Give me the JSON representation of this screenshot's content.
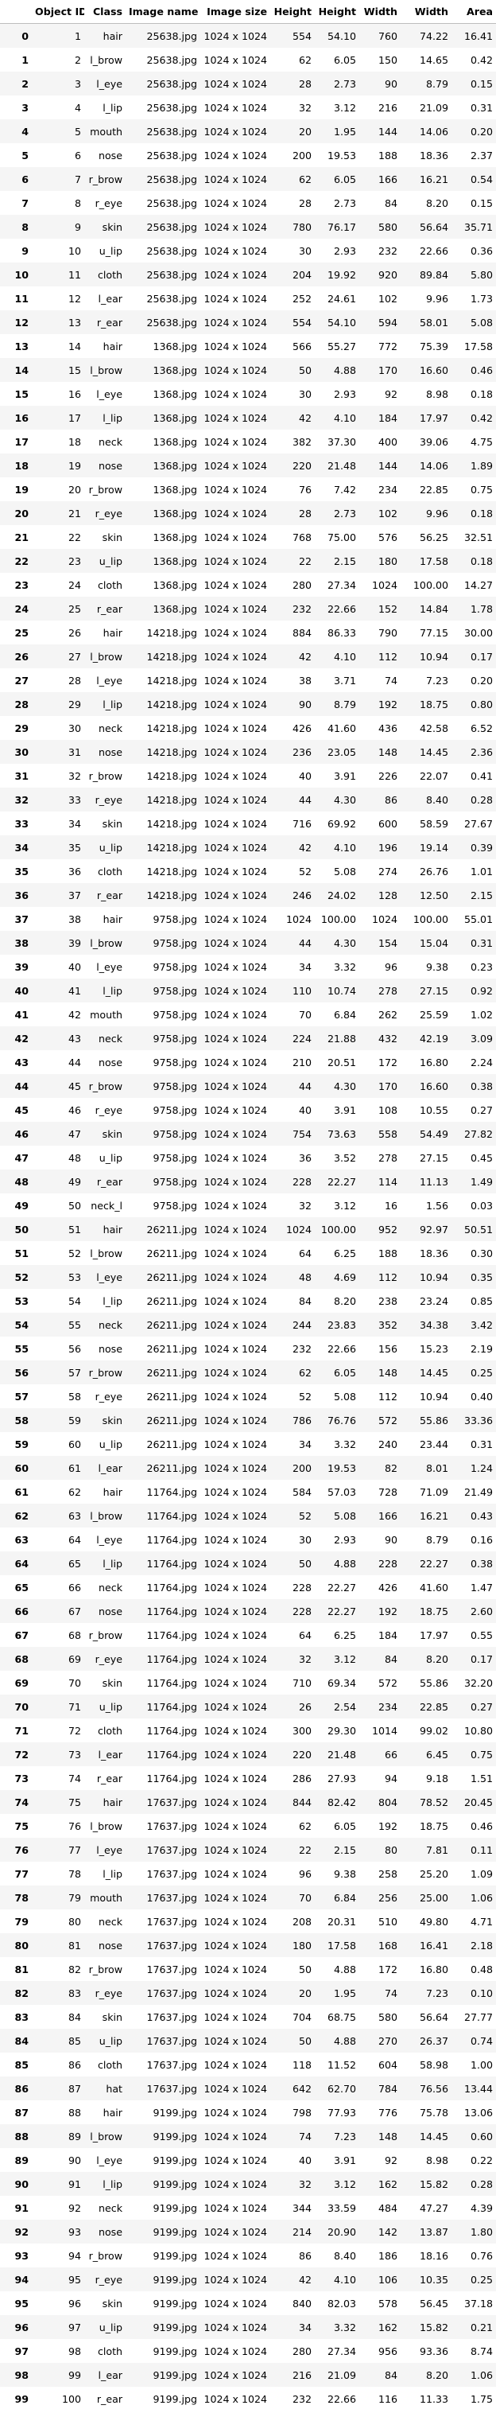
{
  "table": {
    "columns": [
      "",
      "Object ID",
      "Class",
      "Image name",
      "Image size",
      "Height",
      "Height",
      "Width",
      "Width",
      "Area"
    ],
    "rows": [
      [
        "0",
        "1",
        "hair",
        "25638.jpg",
        "1024 x 1024",
        "554",
        "54.10",
        "760",
        "74.22",
        "16.41"
      ],
      [
        "1",
        "2",
        "l_brow",
        "25638.jpg",
        "1024 x 1024",
        "62",
        "6.05",
        "150",
        "14.65",
        "0.42"
      ],
      [
        "2",
        "3",
        "l_eye",
        "25638.jpg",
        "1024 x 1024",
        "28",
        "2.73",
        "90",
        "8.79",
        "0.15"
      ],
      [
        "3",
        "4",
        "l_lip",
        "25638.jpg",
        "1024 x 1024",
        "32",
        "3.12",
        "216",
        "21.09",
        "0.31"
      ],
      [
        "4",
        "5",
        "mouth",
        "25638.jpg",
        "1024 x 1024",
        "20",
        "1.95",
        "144",
        "14.06",
        "0.20"
      ],
      [
        "5",
        "6",
        "nose",
        "25638.jpg",
        "1024 x 1024",
        "200",
        "19.53",
        "188",
        "18.36",
        "2.37"
      ],
      [
        "6",
        "7",
        "r_brow",
        "25638.jpg",
        "1024 x 1024",
        "62",
        "6.05",
        "166",
        "16.21",
        "0.54"
      ],
      [
        "7",
        "8",
        "r_eye",
        "25638.jpg",
        "1024 x 1024",
        "28",
        "2.73",
        "84",
        "8.20",
        "0.15"
      ],
      [
        "8",
        "9",
        "skin",
        "25638.jpg",
        "1024 x 1024",
        "780",
        "76.17",
        "580",
        "56.64",
        "35.71"
      ],
      [
        "9",
        "10",
        "u_lip",
        "25638.jpg",
        "1024 x 1024",
        "30",
        "2.93",
        "232",
        "22.66",
        "0.36"
      ],
      [
        "10",
        "11",
        "cloth",
        "25638.jpg",
        "1024 x 1024",
        "204",
        "19.92",
        "920",
        "89.84",
        "5.80"
      ],
      [
        "11",
        "12",
        "l_ear",
        "25638.jpg",
        "1024 x 1024",
        "252",
        "24.61",
        "102",
        "9.96",
        "1.73"
      ],
      [
        "12",
        "13",
        "r_ear",
        "25638.jpg",
        "1024 x 1024",
        "554",
        "54.10",
        "594",
        "58.01",
        "5.08"
      ],
      [
        "13",
        "14",
        "hair",
        "1368.jpg",
        "1024 x 1024",
        "566",
        "55.27",
        "772",
        "75.39",
        "17.58"
      ],
      [
        "14",
        "15",
        "l_brow",
        "1368.jpg",
        "1024 x 1024",
        "50",
        "4.88",
        "170",
        "16.60",
        "0.46"
      ],
      [
        "15",
        "16",
        "l_eye",
        "1368.jpg",
        "1024 x 1024",
        "30",
        "2.93",
        "92",
        "8.98",
        "0.18"
      ],
      [
        "16",
        "17",
        "l_lip",
        "1368.jpg",
        "1024 x 1024",
        "42",
        "4.10",
        "184",
        "17.97",
        "0.42"
      ],
      [
        "17",
        "18",
        "neck",
        "1368.jpg",
        "1024 x 1024",
        "382",
        "37.30",
        "400",
        "39.06",
        "4.75"
      ],
      [
        "18",
        "19",
        "nose",
        "1368.jpg",
        "1024 x 1024",
        "220",
        "21.48",
        "144",
        "14.06",
        "1.89"
      ],
      [
        "19",
        "20",
        "r_brow",
        "1368.jpg",
        "1024 x 1024",
        "76",
        "7.42",
        "234",
        "22.85",
        "0.75"
      ],
      [
        "20",
        "21",
        "r_eye",
        "1368.jpg",
        "1024 x 1024",
        "28",
        "2.73",
        "102",
        "9.96",
        "0.18"
      ],
      [
        "21",
        "22",
        "skin",
        "1368.jpg",
        "1024 x 1024",
        "768",
        "75.00",
        "576",
        "56.25",
        "32.51"
      ],
      [
        "22",
        "23",
        "u_lip",
        "1368.jpg",
        "1024 x 1024",
        "22",
        "2.15",
        "180",
        "17.58",
        "0.18"
      ],
      [
        "23",
        "24",
        "cloth",
        "1368.jpg",
        "1024 x 1024",
        "280",
        "27.34",
        "1024",
        "100.00",
        "14.27"
      ],
      [
        "24",
        "25",
        "r_ear",
        "1368.jpg",
        "1024 x 1024",
        "232",
        "22.66",
        "152",
        "14.84",
        "1.78"
      ],
      [
        "25",
        "26",
        "hair",
        "14218.jpg",
        "1024 x 1024",
        "884",
        "86.33",
        "790",
        "77.15",
        "30.00"
      ],
      [
        "26",
        "27",
        "l_brow",
        "14218.jpg",
        "1024 x 1024",
        "42",
        "4.10",
        "112",
        "10.94",
        "0.17"
      ],
      [
        "27",
        "28",
        "l_eye",
        "14218.jpg",
        "1024 x 1024",
        "38",
        "3.71",
        "74",
        "7.23",
        "0.20"
      ],
      [
        "28",
        "29",
        "l_lip",
        "14218.jpg",
        "1024 x 1024",
        "90",
        "8.79",
        "192",
        "18.75",
        "0.80"
      ],
      [
        "29",
        "30",
        "neck",
        "14218.jpg",
        "1024 x 1024",
        "426",
        "41.60",
        "436",
        "42.58",
        "6.52"
      ],
      [
        "30",
        "31",
        "nose",
        "14218.jpg",
        "1024 x 1024",
        "236",
        "23.05",
        "148",
        "14.45",
        "2.36"
      ],
      [
        "31",
        "32",
        "r_brow",
        "14218.jpg",
        "1024 x 1024",
        "40",
        "3.91",
        "226",
        "22.07",
        "0.41"
      ],
      [
        "32",
        "33",
        "r_eye",
        "14218.jpg",
        "1024 x 1024",
        "44",
        "4.30",
        "86",
        "8.40",
        "0.28"
      ],
      [
        "33",
        "34",
        "skin",
        "14218.jpg",
        "1024 x 1024",
        "716",
        "69.92",
        "600",
        "58.59",
        "27.67"
      ],
      [
        "34",
        "35",
        "u_lip",
        "14218.jpg",
        "1024 x 1024",
        "42",
        "4.10",
        "196",
        "19.14",
        "0.39"
      ],
      [
        "35",
        "36",
        "cloth",
        "14218.jpg",
        "1024 x 1024",
        "52",
        "5.08",
        "274",
        "26.76",
        "1.01"
      ],
      [
        "36",
        "37",
        "r_ear",
        "14218.jpg",
        "1024 x 1024",
        "246",
        "24.02",
        "128",
        "12.50",
        "2.15"
      ],
      [
        "37",
        "38",
        "hair",
        "9758.jpg",
        "1024 x 1024",
        "1024",
        "100.00",
        "1024",
        "100.00",
        "55.01"
      ],
      [
        "38",
        "39",
        "l_brow",
        "9758.jpg",
        "1024 x 1024",
        "44",
        "4.30",
        "154",
        "15.04",
        "0.31"
      ],
      [
        "39",
        "40",
        "l_eye",
        "9758.jpg",
        "1024 x 1024",
        "34",
        "3.32",
        "96",
        "9.38",
        "0.23"
      ],
      [
        "40",
        "41",
        "l_lip",
        "9758.jpg",
        "1024 x 1024",
        "110",
        "10.74",
        "278",
        "27.15",
        "0.92"
      ],
      [
        "41",
        "42",
        "mouth",
        "9758.jpg",
        "1024 x 1024",
        "70",
        "6.84",
        "262",
        "25.59",
        "1.02"
      ],
      [
        "42",
        "43",
        "neck",
        "9758.jpg",
        "1024 x 1024",
        "224",
        "21.88",
        "432",
        "42.19",
        "3.09"
      ],
      [
        "43",
        "44",
        "nose",
        "9758.jpg",
        "1024 x 1024",
        "210",
        "20.51",
        "172",
        "16.80",
        "2.24"
      ],
      [
        "44",
        "45",
        "r_brow",
        "9758.jpg",
        "1024 x 1024",
        "44",
        "4.30",
        "170",
        "16.60",
        "0.38"
      ],
      [
        "45",
        "46",
        "r_eye",
        "9758.jpg",
        "1024 x 1024",
        "40",
        "3.91",
        "108",
        "10.55",
        "0.27"
      ],
      [
        "46",
        "47",
        "skin",
        "9758.jpg",
        "1024 x 1024",
        "754",
        "73.63",
        "558",
        "54.49",
        "27.82"
      ],
      [
        "47",
        "48",
        "u_lip",
        "9758.jpg",
        "1024 x 1024",
        "36",
        "3.52",
        "278",
        "27.15",
        "0.45"
      ],
      [
        "48",
        "49",
        "r_ear",
        "9758.jpg",
        "1024 x 1024",
        "228",
        "22.27",
        "114",
        "11.13",
        "1.49"
      ],
      [
        "49",
        "50",
        "neck_l",
        "9758.jpg",
        "1024 x 1024",
        "32",
        "3.12",
        "16",
        "1.56",
        "0.03"
      ],
      [
        "50",
        "51",
        "hair",
        "26211.jpg",
        "1024 x 1024",
        "1024",
        "100.00",
        "952",
        "92.97",
        "50.51"
      ],
      [
        "51",
        "52",
        "l_brow",
        "26211.jpg",
        "1024 x 1024",
        "64",
        "6.25",
        "188",
        "18.36",
        "0.30"
      ],
      [
        "52",
        "53",
        "l_eye",
        "26211.jpg",
        "1024 x 1024",
        "48",
        "4.69",
        "112",
        "10.94",
        "0.35"
      ],
      [
        "53",
        "54",
        "l_lip",
        "26211.jpg",
        "1024 x 1024",
        "84",
        "8.20",
        "238",
        "23.24",
        "0.85"
      ],
      [
        "54",
        "55",
        "neck",
        "26211.jpg",
        "1024 x 1024",
        "244",
        "23.83",
        "352",
        "34.38",
        "3.42"
      ],
      [
        "55",
        "56",
        "nose",
        "26211.jpg",
        "1024 x 1024",
        "232",
        "22.66",
        "156",
        "15.23",
        "2.19"
      ],
      [
        "56",
        "57",
        "r_brow",
        "26211.jpg",
        "1024 x 1024",
        "62",
        "6.05",
        "148",
        "14.45",
        "0.25"
      ],
      [
        "57",
        "58",
        "r_eye",
        "26211.jpg",
        "1024 x 1024",
        "52",
        "5.08",
        "112",
        "10.94",
        "0.40"
      ],
      [
        "58",
        "59",
        "skin",
        "26211.jpg",
        "1024 x 1024",
        "786",
        "76.76",
        "572",
        "55.86",
        "33.36"
      ],
      [
        "59",
        "60",
        "u_lip",
        "26211.jpg",
        "1024 x 1024",
        "34",
        "3.32",
        "240",
        "23.44",
        "0.31"
      ],
      [
        "60",
        "61",
        "l_ear",
        "26211.jpg",
        "1024 x 1024",
        "200",
        "19.53",
        "82",
        "8.01",
        "1.24"
      ],
      [
        "61",
        "62",
        "hair",
        "11764.jpg",
        "1024 x 1024",
        "584",
        "57.03",
        "728",
        "71.09",
        "21.49"
      ],
      [
        "62",
        "63",
        "l_brow",
        "11764.jpg",
        "1024 x 1024",
        "52",
        "5.08",
        "166",
        "16.21",
        "0.43"
      ],
      [
        "63",
        "64",
        "l_eye",
        "11764.jpg",
        "1024 x 1024",
        "30",
        "2.93",
        "90",
        "8.79",
        "0.16"
      ],
      [
        "64",
        "65",
        "l_lip",
        "11764.jpg",
        "1024 x 1024",
        "50",
        "4.88",
        "228",
        "22.27",
        "0.38"
      ],
      [
        "65",
        "66",
        "neck",
        "11764.jpg",
        "1024 x 1024",
        "228",
        "22.27",
        "426",
        "41.60",
        "1.47"
      ],
      [
        "66",
        "67",
        "nose",
        "11764.jpg",
        "1024 x 1024",
        "228",
        "22.27",
        "192",
        "18.75",
        "2.60"
      ],
      [
        "67",
        "68",
        "r_brow",
        "11764.jpg",
        "1024 x 1024",
        "64",
        "6.25",
        "184",
        "17.97",
        "0.55"
      ],
      [
        "68",
        "69",
        "r_eye",
        "11764.jpg",
        "1024 x 1024",
        "32",
        "3.12",
        "84",
        "8.20",
        "0.17"
      ],
      [
        "69",
        "70",
        "skin",
        "11764.jpg",
        "1024 x 1024",
        "710",
        "69.34",
        "572",
        "55.86",
        "32.20"
      ],
      [
        "70",
        "71",
        "u_lip",
        "11764.jpg",
        "1024 x 1024",
        "26",
        "2.54",
        "234",
        "22.85",
        "0.27"
      ],
      [
        "71",
        "72",
        "cloth",
        "11764.jpg",
        "1024 x 1024",
        "300",
        "29.30",
        "1014",
        "99.02",
        "10.80"
      ],
      [
        "72",
        "73",
        "l_ear",
        "11764.jpg",
        "1024 x 1024",
        "220",
        "21.48",
        "66",
        "6.45",
        "0.75"
      ],
      [
        "73",
        "74",
        "r_ear",
        "11764.jpg",
        "1024 x 1024",
        "286",
        "27.93",
        "94",
        "9.18",
        "1.51"
      ],
      [
        "74",
        "75",
        "hair",
        "17637.jpg",
        "1024 x 1024",
        "844",
        "82.42",
        "804",
        "78.52",
        "20.45"
      ],
      [
        "75",
        "76",
        "l_brow",
        "17637.jpg",
        "1024 x 1024",
        "62",
        "6.05",
        "192",
        "18.75",
        "0.46"
      ],
      [
        "76",
        "77",
        "l_eye",
        "17637.jpg",
        "1024 x 1024",
        "22",
        "2.15",
        "80",
        "7.81",
        "0.11"
      ],
      [
        "77",
        "78",
        "l_lip",
        "17637.jpg",
        "1024 x 1024",
        "96",
        "9.38",
        "258",
        "25.20",
        "1.09"
      ],
      [
        "78",
        "79",
        "mouth",
        "17637.jpg",
        "1024 x 1024",
        "70",
        "6.84",
        "256",
        "25.00",
        "1.06"
      ],
      [
        "79",
        "80",
        "neck",
        "17637.jpg",
        "1024 x 1024",
        "208",
        "20.31",
        "510",
        "49.80",
        "4.71"
      ],
      [
        "80",
        "81",
        "nose",
        "17637.jpg",
        "1024 x 1024",
        "180",
        "17.58",
        "168",
        "16.41",
        "2.18"
      ],
      [
        "81",
        "82",
        "r_brow",
        "17637.jpg",
        "1024 x 1024",
        "50",
        "4.88",
        "172",
        "16.80",
        "0.48"
      ],
      [
        "82",
        "83",
        "r_eye",
        "17637.jpg",
        "1024 x 1024",
        "20",
        "1.95",
        "74",
        "7.23",
        "0.10"
      ],
      [
        "83",
        "84",
        "skin",
        "17637.jpg",
        "1024 x 1024",
        "704",
        "68.75",
        "580",
        "56.64",
        "27.77"
      ],
      [
        "84",
        "85",
        "u_lip",
        "17637.jpg",
        "1024 x 1024",
        "50",
        "4.88",
        "270",
        "26.37",
        "0.74"
      ],
      [
        "85",
        "86",
        "cloth",
        "17637.jpg",
        "1024 x 1024",
        "118",
        "11.52",
        "604",
        "58.98",
        "1.00"
      ],
      [
        "86",
        "87",
        "hat",
        "17637.jpg",
        "1024 x 1024",
        "642",
        "62.70",
        "784",
        "76.56",
        "13.44"
      ],
      [
        "87",
        "88",
        "hair",
        "9199.jpg",
        "1024 x 1024",
        "798",
        "77.93",
        "776",
        "75.78",
        "13.06"
      ],
      [
        "88",
        "89",
        "l_brow",
        "9199.jpg",
        "1024 x 1024",
        "74",
        "7.23",
        "148",
        "14.45",
        "0.60"
      ],
      [
        "89",
        "90",
        "l_eye",
        "9199.jpg",
        "1024 x 1024",
        "40",
        "3.91",
        "92",
        "8.98",
        "0.22"
      ],
      [
        "90",
        "91",
        "l_lip",
        "9199.jpg",
        "1024 x 1024",
        "32",
        "3.12",
        "162",
        "15.82",
        "0.28"
      ],
      [
        "91",
        "92",
        "neck",
        "9199.jpg",
        "1024 x 1024",
        "344",
        "33.59",
        "484",
        "47.27",
        "4.39"
      ],
      [
        "92",
        "93",
        "nose",
        "9199.jpg",
        "1024 x 1024",
        "214",
        "20.90",
        "142",
        "13.87",
        "1.80"
      ],
      [
        "93",
        "94",
        "r_brow",
        "9199.jpg",
        "1024 x 1024",
        "86",
        "8.40",
        "186",
        "18.16",
        "0.76"
      ],
      [
        "94",
        "95",
        "r_eye",
        "9199.jpg",
        "1024 x 1024",
        "42",
        "4.10",
        "106",
        "10.35",
        "0.25"
      ],
      [
        "95",
        "96",
        "skin",
        "9199.jpg",
        "1024 x 1024",
        "840",
        "82.03",
        "578",
        "56.45",
        "37.18"
      ],
      [
        "96",
        "97",
        "u_lip",
        "9199.jpg",
        "1024 x 1024",
        "34",
        "3.32",
        "162",
        "15.82",
        "0.21"
      ],
      [
        "97",
        "98",
        "cloth",
        "9199.jpg",
        "1024 x 1024",
        "280",
        "27.34",
        "956",
        "93.36",
        "8.74"
      ],
      [
        "98",
        "99",
        "l_ear",
        "9199.jpg",
        "1024 x 1024",
        "216",
        "21.09",
        "84",
        "8.20",
        "1.06"
      ],
      [
        "99",
        "100",
        "r_ear",
        "9199.jpg",
        "1024 x 1024",
        "232",
        "22.66",
        "116",
        "11.33",
        "1.75"
      ]
    ]
  }
}
